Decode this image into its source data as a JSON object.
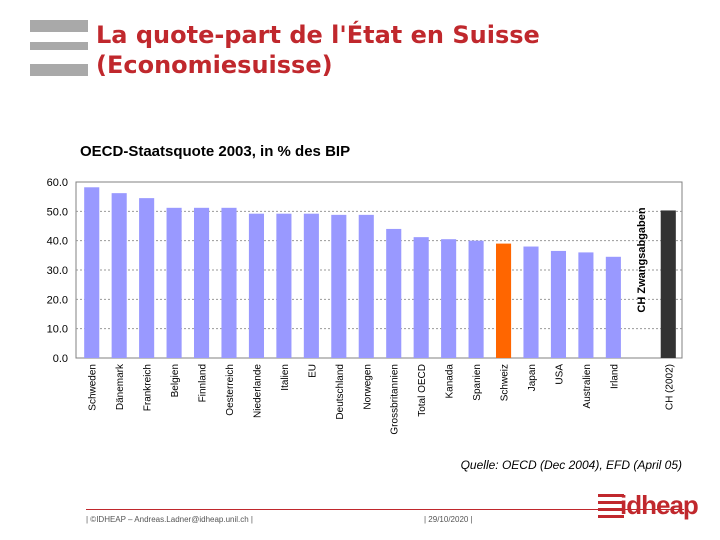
{
  "slide": {
    "title_line1": "La quote-part de l'État en Suisse",
    "title_line2": "(Economiesuisse)",
    "source": "Quelle: OECD (Dec 2004), EFD (April 05)",
    "footer_left": "| ©IDHEAP – Andreas.Ladner@idheap.unil.ch |",
    "footer_date": "| 29/10/2020 |",
    "brand": "idheap"
  },
  "colors": {
    "title": "#c0282d",
    "bar_default": "#9999ff",
    "bar_highlight": "#ff6600",
    "bar_special": "#333333"
  },
  "chart_data": {
    "type": "bar",
    "title": "OECD-Staatsquote 2003, in % des BIP",
    "xlabel": "",
    "ylabel": "",
    "ylim": [
      0,
      60
    ],
    "yticks": [
      "0.0",
      "10.0",
      "20.0",
      "30.0",
      "40.0",
      "50.0",
      "60.0"
    ],
    "grid": true,
    "categories": [
      "Schweden",
      "Dänemark",
      "Frankreich",
      "Belgien",
      "Finnland",
      "Oesterreich",
      "Niederlande",
      "Italien",
      "EU",
      "Deutschland",
      "Norwegen",
      "Grossbritannien",
      "Total OECD",
      "Kanada",
      "Spanien",
      "Schweiz",
      "Japan",
      "USA",
      "Australien",
      "Irland",
      "",
      "CH (2002)"
    ],
    "values": [
      58.2,
      56.2,
      54.5,
      51.2,
      51.2,
      51.2,
      49.2,
      49.2,
      49.2,
      48.8,
      48.8,
      44.0,
      41.2,
      40.5,
      40.0,
      39.0,
      38.0,
      36.5,
      36.0,
      34.5,
      null,
      50.3
    ],
    "highlight": {
      "Schweiz": "bar_highlight",
      "CH (2002)": "bar_special"
    },
    "annotation": "CH Zwangsabgaben"
  }
}
